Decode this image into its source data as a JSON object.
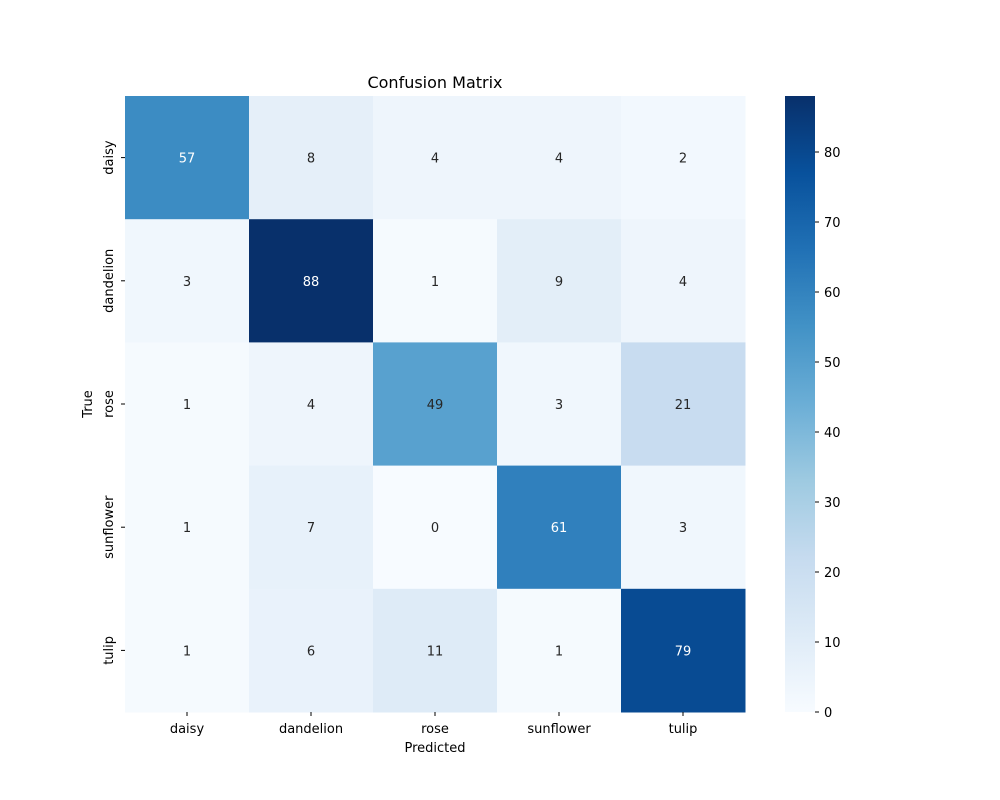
{
  "chart_data": {
    "type": "heatmap",
    "title": "Confusion Matrix",
    "xlabel": "Predicted",
    "ylabel": "True",
    "x_categories": [
      "daisy",
      "dandelion",
      "rose",
      "sunflower",
      "tulip"
    ],
    "y_categories": [
      "daisy",
      "dandelion",
      "rose",
      "sunflower",
      "tulip"
    ],
    "values": [
      [
        57,
        8,
        4,
        4,
        2
      ],
      [
        3,
        88,
        1,
        9,
        4
      ],
      [
        1,
        4,
        49,
        3,
        21
      ],
      [
        1,
        7,
        0,
        61,
        3
      ],
      [
        1,
        6,
        11,
        1,
        79
      ]
    ],
    "vmin": 0,
    "vmax": 88,
    "colormap": "Blues",
    "colorbar_ticks": [
      0,
      10,
      20,
      30,
      40,
      50,
      60,
      70,
      80
    ]
  }
}
